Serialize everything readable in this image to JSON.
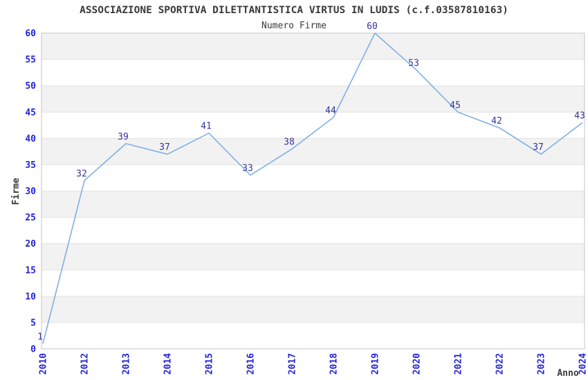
{
  "chart_data": {
    "type": "line",
    "title": "ASSOCIAZIONE SPORTIVA DILETTANTISTICA VIRTUS IN LUDIS (c.f.03587810163)",
    "subtitle": "Numero Firme",
    "xlabel": "Anno",
    "ylabel": "Firme",
    "categories": [
      "2010",
      "2012",
      "2013",
      "2014",
      "2015",
      "2016",
      "2017",
      "2018",
      "2019",
      "2020",
      "2021",
      "2022",
      "2023",
      "2024"
    ],
    "values": [
      1,
      32,
      39,
      37,
      41,
      33,
      38,
      44,
      60,
      53,
      45,
      42,
      37,
      43
    ],
    "ylim": [
      0,
      60
    ],
    "ytick_step": 5,
    "yticks": [
      0,
      5,
      10,
      15,
      20,
      25,
      30,
      35,
      40,
      45,
      50,
      55,
      60
    ],
    "grid": "horizontal alternating bands, gridline every 5",
    "legend_position": "none",
    "colors": {
      "line": "#7fafe5",
      "tick_label": "#2222dd",
      "point_label": "#333399",
      "band_fill": "#f2f2f2",
      "gridline": "#e2e2e2",
      "plot_border": "#c6c6c6",
      "plot_background": "#ffffff",
      "text": "#3a3a3a"
    }
  }
}
